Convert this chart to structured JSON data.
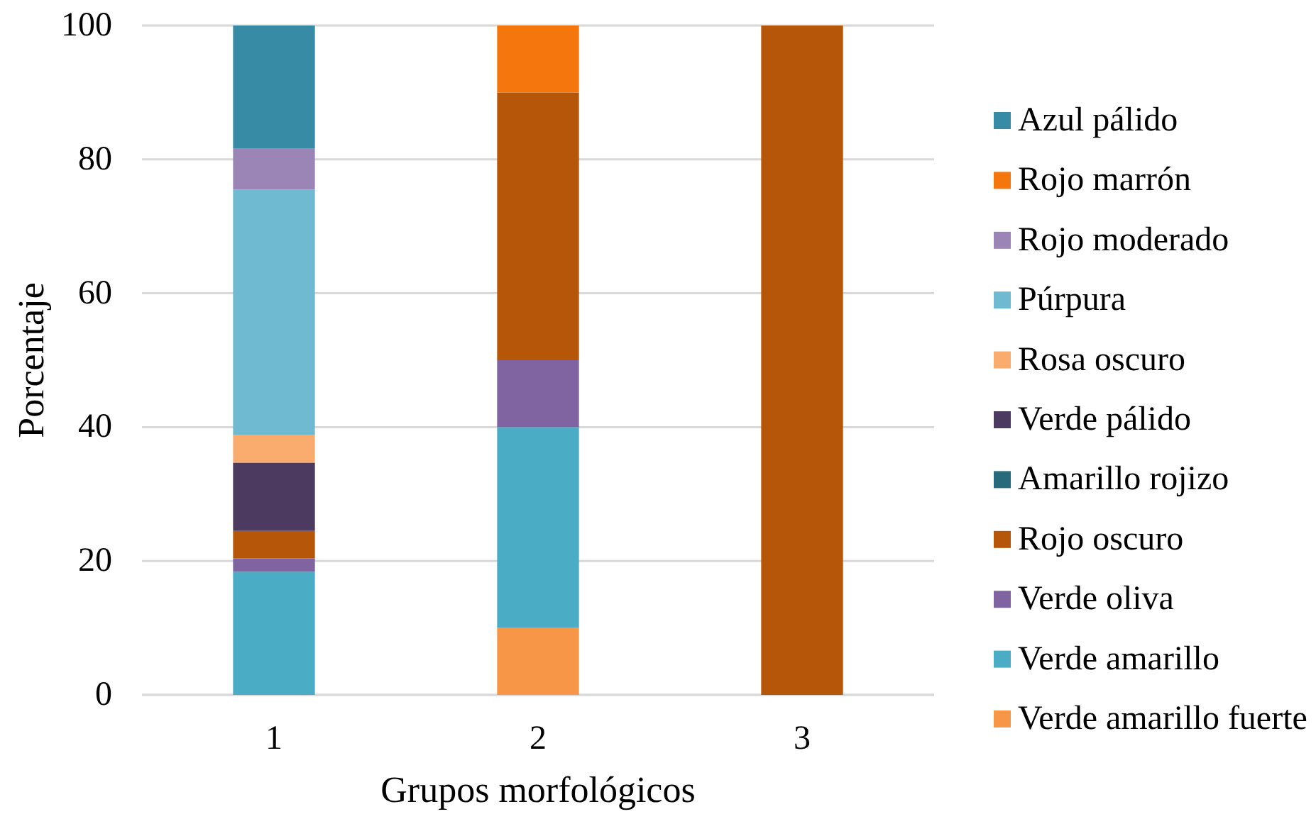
{
  "chart_data": {
    "type": "bar",
    "stacked": true,
    "xlabel": "Grupos morfológicos",
    "ylabel": "Porcentaje",
    "categories": [
      "1",
      "2",
      "3"
    ],
    "series": [
      {
        "name": "Verde amarillo fuerte",
        "color": "#f79646",
        "values": [
          null,
          10,
          null
        ]
      },
      {
        "name": "Verde amarillo",
        "color": "#4bacc6",
        "values": [
          18.4,
          30,
          null
        ]
      },
      {
        "name": "Verde oliva",
        "color": "#8064a2",
        "values": [
          2.0,
          10,
          null
        ]
      },
      {
        "name": "Rojo oscuro",
        "color": "#b65608",
        "values": [
          4.1,
          40,
          100
        ]
      },
      {
        "name": "Amarillo rojizo",
        "color": "#276a7c",
        "values": [
          null,
          null,
          null
        ]
      },
      {
        "name": "Verde pálido",
        "color": "#4d3a60",
        "values": [
          10.2,
          null,
          null
        ]
      },
      {
        "name": "Rosa oscuro",
        "color": "#f9ac6e",
        "values": [
          4.1,
          null,
          null
        ]
      },
      {
        "name": "Púrpura",
        "color": "#6fbad0",
        "values": [
          36.7,
          null,
          null
        ]
      },
      {
        "name": "Rojo moderado",
        "color": "#9b85b6",
        "values": [
          6.1,
          null,
          null
        ]
      },
      {
        "name": "Rojo marrón",
        "color": "#f4760c",
        "values": [
          null,
          10,
          null
        ]
      },
      {
        "name": "Azul pálido",
        "color": "#378ba4",
        "values": [
          18.4,
          null,
          null
        ]
      }
    ],
    "ylim": [
      0,
      100
    ],
    "yticks": [
      0,
      20,
      40,
      60,
      80,
      100
    ],
    "grid": "y",
    "legend": "right"
  }
}
